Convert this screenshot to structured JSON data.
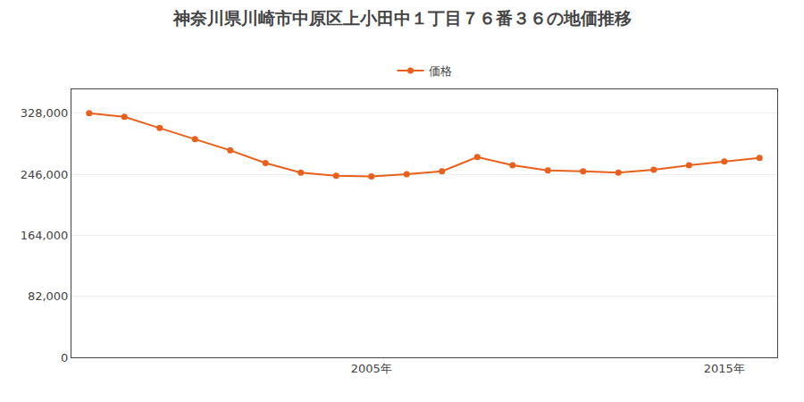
{
  "chart_data": {
    "type": "line",
    "title": "神奈川県川崎市中原区上小田中１丁目７６番３６の地価推移",
    "x": [
      1997,
      1998,
      1999,
      2000,
      2001,
      2002,
      2003,
      2004,
      2005,
      2006,
      2007,
      2008,
      2009,
      2010,
      2011,
      2012,
      2013,
      2014,
      2015,
      2016
    ],
    "series": [
      {
        "name": "価格",
        "color": "#e8601c",
        "marker": "circle",
        "values": [
          328000,
          323000,
          308000,
          293000,
          278000,
          261000,
          248000,
          244000,
          243000,
          246000,
          250000,
          269000,
          258000,
          251000,
          250000,
          248000,
          252000,
          258000,
          263000,
          268000
        ]
      }
    ],
    "xlim": [
      1996.5,
      2016.5
    ],
    "xticks": [
      {
        "value": 2005,
        "label": "2005年"
      },
      {
        "value": 2015,
        "label": "2015年"
      }
    ],
    "ylim": [
      0,
      360000
    ],
    "yticks": [
      0,
      {
        "value": 82000,
        "label": "82,000"
      },
      {
        "value": 164000,
        "label": "164,000"
      },
      {
        "value": 246000,
        "label": "246,000"
      },
      {
        "value": 328000,
        "label": "328,000"
      }
    ],
    "grid": true,
    "legend": "top"
  }
}
